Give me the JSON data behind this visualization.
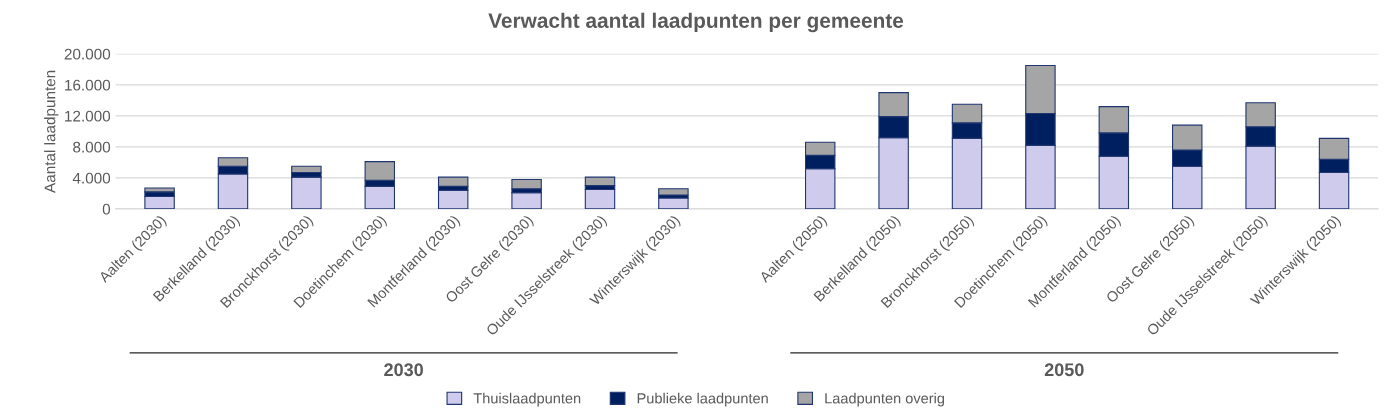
{
  "chart_data": {
    "type": "bar",
    "title": "Verwacht aantal laadpunten per gemeente",
    "ylabel": "Aantal laadpunten",
    "categories": [
      "Aalten (2030)",
      "Berkelland (2030)",
      "Bronckhorst (2030)",
      "Doetinchem (2030)",
      "Montferland (2030)",
      "Oost Gelre (2030)",
      "Oude IJsselstreek (2030)",
      "Winterswijk (2030)",
      null,
      "Aalten (2050)",
      "Berkelland (2050)",
      "Bronckhorst (2050)",
      "Doetinchem (2050)",
      "Montferland (2050)",
      "Oost Gelre (2050)",
      "Oude IJsselstreek (2050)",
      "Winterswijk (2050)"
    ],
    "stacked": true,
    "series": [
      {
        "name": "Thuislaadpunten",
        "color": "#cfcbec",
        "values": [
          1600,
          4500,
          4100,
          2900,
          2400,
          2100,
          2500,
          1400,
          null,
          5200,
          9200,
          9100,
          8200,
          6800,
          5500,
          8100,
          4700
        ]
      },
      {
        "name": "Publieke laadpunten",
        "color": "#001f5f",
        "values": [
          600,
          1000,
          600,
          800,
          500,
          500,
          500,
          400,
          null,
          1700,
          2700,
          2000,
          4100,
          3000,
          2100,
          2500,
          1700
        ]
      },
      {
        "name": "Laadpunten overig",
        "color": "#a5a5a5",
        "values": [
          500,
          1100,
          800,
          2400,
          1200,
          1200,
          1100,
          800,
          null,
          1700,
          3100,
          2400,
          6200,
          3400,
          3200,
          3100,
          2700
        ]
      }
    ],
    "ylim": [
      0,
      20000
    ],
    "yticks": [
      {
        "value": 0,
        "label": "0"
      },
      {
        "value": 4000,
        "label": "4.000"
      },
      {
        "value": 8000,
        "label": "8.000"
      },
      {
        "value": 12000,
        "label": "12.000"
      },
      {
        "value": 16000,
        "label": "16.000"
      },
      {
        "value": 20000,
        "label": "20.000"
      }
    ],
    "grid": "y",
    "legend": "bottom",
    "annotations": [
      "2030",
      "2050"
    ]
  }
}
